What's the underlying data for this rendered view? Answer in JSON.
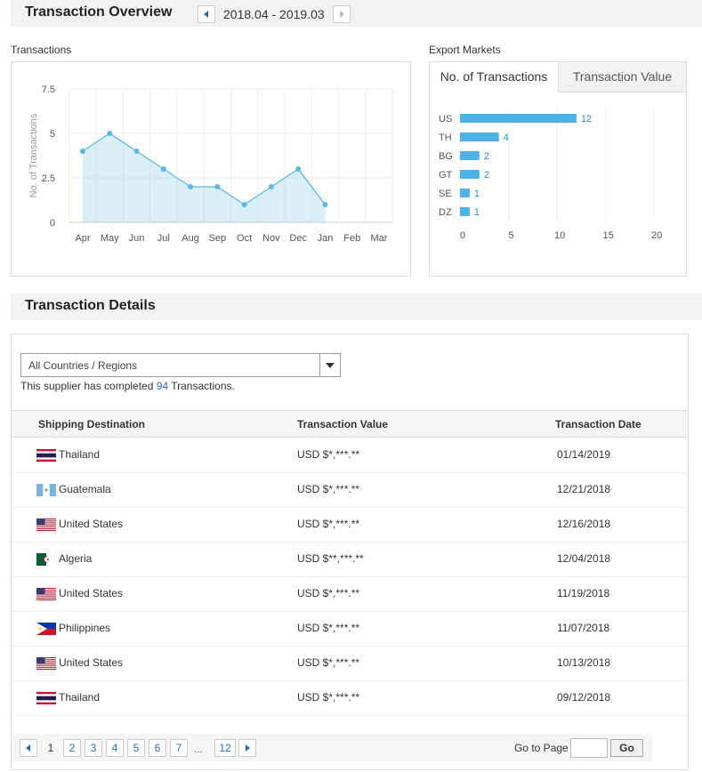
{
  "header": {
    "title": "Transaction Overview",
    "date_range": "2018.04 - 2019.03"
  },
  "transactions_chart": {
    "type": "area",
    "title": "Transactions",
    "y_label": "No. of Transactions",
    "categories": [
      "Apr",
      "May",
      "Jun",
      "Jul",
      "Aug",
      "Sep",
      "Oct",
      "Nov",
      "Dec",
      "Jan",
      "Feb",
      "Mar"
    ],
    "values": [
      4,
      5,
      4,
      3,
      2,
      2,
      1,
      2,
      3,
      1,
      null,
      null
    ],
    "ylim": [
      0,
      7.5
    ],
    "yticks": [
      0,
      2.5,
      5,
      7.5
    ],
    "color": "#5bb8e4",
    "grid": true
  },
  "export_chart": {
    "type": "hbar",
    "title": "Export Markets",
    "tabs": [
      "No. of Transactions",
      "Transaction Value"
    ],
    "categories": [
      "US",
      "TH",
      "BG",
      "GT",
      "SE",
      "DZ"
    ],
    "values": [
      12,
      4,
      2,
      2,
      1,
      1
    ],
    "xlim": [
      0,
      22
    ],
    "xticks": [
      0,
      5,
      10,
      15,
      20
    ],
    "color": "#4db3e6",
    "grid": true
  },
  "details": {
    "title": "Transaction Details",
    "dropdown": "All Countries / Regions",
    "summary_prefix": "This supplier has completed",
    "summary_count": 94,
    "summary_suffix": "Transactions.",
    "columns": [
      "Shipping Destination",
      "Transaction Value",
      "Transaction Date"
    ],
    "rows": [
      [
        "Thailand",
        "USD $*,***.**",
        "01/14/2019"
      ],
      [
        "Guatemala",
        "USD $*,***.**",
        "12/21/2018"
      ],
      [
        "United States",
        "USD $*,***.**",
        "12/16/2018"
      ],
      [
        "Algeria",
        "USD $**,***.**",
        "12/04/2018"
      ],
      [
        "United States",
        "USD $*,***.**",
        "11/19/2018"
      ],
      [
        "Philippines",
        "USD $*,***.**",
        "11/07/2018"
      ],
      [
        "United States",
        "USD $*,***.**",
        "10/13/2018"
      ],
      [
        "Thailand",
        "USD $*,***.**",
        "09/12/2018"
      ]
    ]
  },
  "pagination": {
    "pages": [
      1,
      2,
      3,
      4,
      5,
      6,
      7
    ],
    "ellipsis": "...",
    "last_page": 12,
    "go_to_label": "Go to Page",
    "go_button": "Go"
  }
}
